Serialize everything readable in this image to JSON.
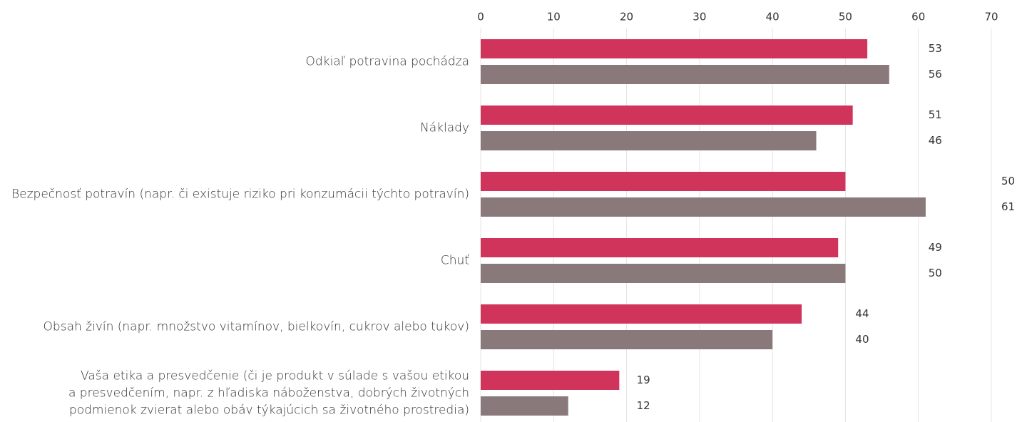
{
  "chart_data": {
    "type": "hbar",
    "categories": [
      "Odkiaľ potravina pochádza",
      "Náklady",
      "Bezpečnosť potravín (napr. či existuje riziko pri konzumácii týchto potravín)",
      "Chuť",
      "Obsah živín (napr. množstvo vitamínov, bielkovín, cukrov alebo tukov)",
      "Vaša etika a presvedčenie (či je produkt v súlade s vašou etikou\na presvedčením, napr. z hľadiska náboženstva, dobrých životných\npodmienok zvierat alebo obáv týkajúcich sa životného prostredia)"
    ],
    "series": [
      {
        "color": "#d0345a",
        "values": [
          53,
          51,
          50,
          49,
          44,
          19
        ]
      },
      {
        "color": "#8a797b",
        "values": [
          56,
          46,
          61,
          50,
          40,
          12
        ]
      }
    ],
    "xlim": [
      0,
      70
    ],
    "xticks": [
      0,
      10,
      20,
      30,
      40,
      50,
      60,
      70
    ],
    "grid": true
  }
}
